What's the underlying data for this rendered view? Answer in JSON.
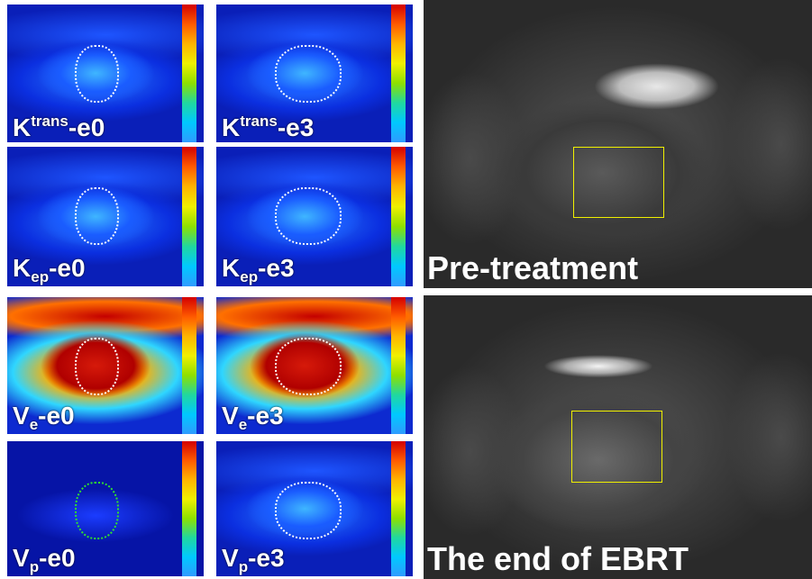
{
  "panels": [
    {
      "base": "K",
      "sup": "trans",
      "suffix": "-e0"
    },
    {
      "base": "K",
      "sup": "trans",
      "suffix": "-e3"
    },
    {
      "base": "K",
      "sub": "ep",
      "suffix": "-e0"
    },
    {
      "base": "K",
      "sub": "ep",
      "suffix": "-e3"
    },
    {
      "base": "V",
      "sub": "e",
      "suffix": "-e0"
    },
    {
      "base": "V",
      "sub": "e",
      "suffix": "-e3"
    },
    {
      "base": "V",
      "sub": "p",
      "suffix": "-e0"
    },
    {
      "base": "V",
      "sub": "p",
      "suffix": "-e3"
    }
  ],
  "large_panels": [
    {
      "label": "Pre-treatment"
    },
    {
      "label": "The end of EBRT"
    }
  ]
}
